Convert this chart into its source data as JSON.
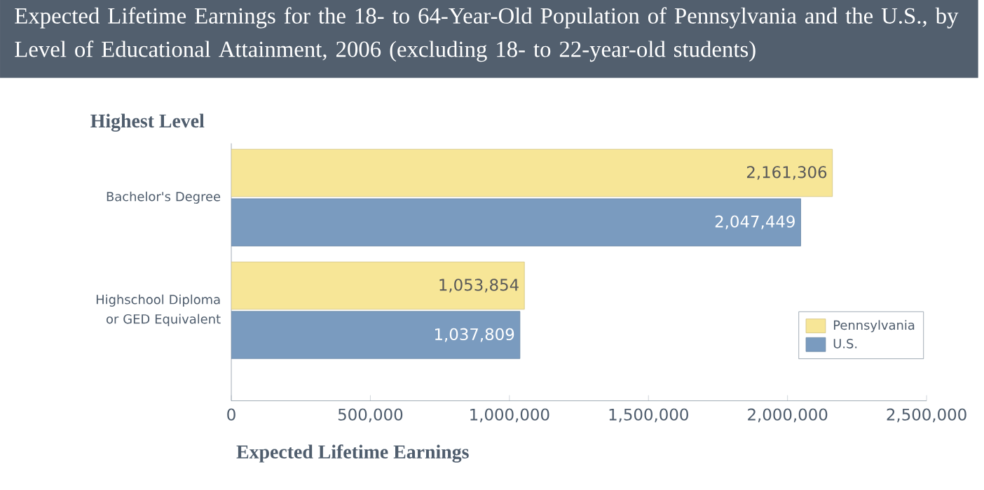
{
  "chart_data": {
    "type": "bar",
    "orientation": "horizontal",
    "title": "Expected Lifetime Earnings for the 18- to 64-Year-Old Population of Pennsylvania and the U.S., by Level of Educational Attainment, 2006 (excluding 18- to 22-year-old students)",
    "xlabel": "Expected Lifetime Earnings",
    "ylabel": "Highest Level",
    "categories": [
      "Bachelor's Degree",
      "Highschool Diploma or GED Equivalent"
    ],
    "series": [
      {
        "name": "Pennsylvania",
        "color": "#f7e697",
        "values": [
          2161306,
          1053854
        ],
        "value_labels": [
          "2,161,306",
          "1,053,854"
        ]
      },
      {
        "name": "U.S.",
        "color": "#7a9bbf",
        "values": [
          2047449,
          1037809
        ],
        "value_labels": [
          "2,047,449",
          "1,037,809"
        ]
      }
    ],
    "xlim": [
      0,
      2500000
    ],
    "xticks": [
      0,
      {
        "value": 500000,
        "label": "500,000"
      },
      {
        "value": 1000000,
        "label": "1,000,000"
      },
      {
        "value": 1500000,
        "label": "1,500,000"
      },
      {
        "value": 2000000,
        "label": "2,000,000"
      },
      {
        "value": 2500000,
        "label": "2,500,000"
      }
    ],
    "legend": "bottom right",
    "grid": false
  }
}
